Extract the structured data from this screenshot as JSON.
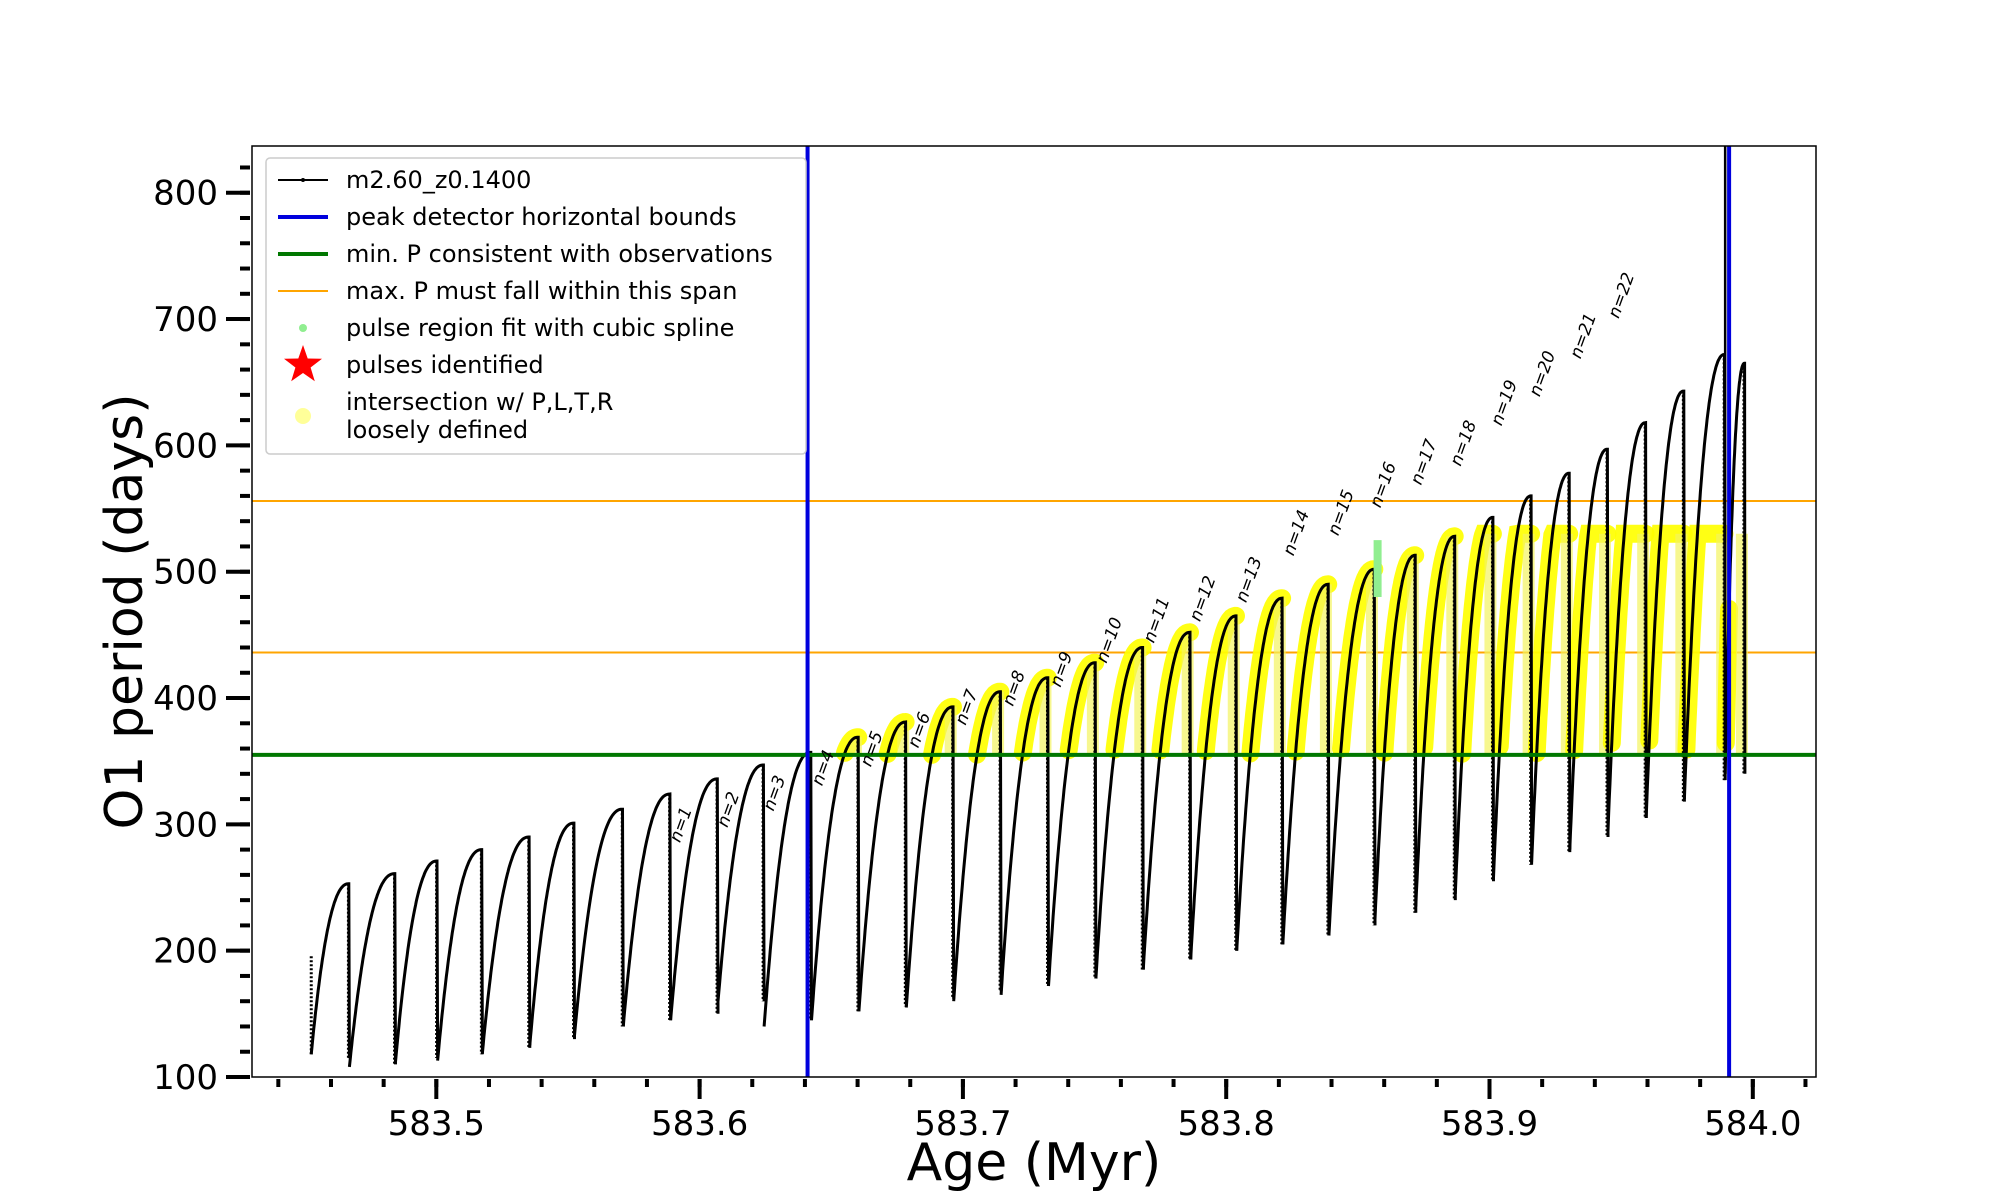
{
  "chart_data": {
    "type": "line",
    "title": "",
    "xlabel": "Age (Myr)",
    "ylabel": "O1 period (days)",
    "xlim": [
      583.43,
      584.024
    ],
    "ylim": [
      100,
      837
    ],
    "x_ticks": [
      583.5,
      583.6,
      583.7,
      583.8,
      583.9,
      584.0
    ],
    "x_tick_labels": [
      "583.5",
      "583.6",
      "583.7",
      "583.8",
      "583.9",
      "584.0"
    ],
    "y_ticks": [
      100,
      200,
      300,
      400,
      500,
      600,
      700,
      800
    ],
    "y_tick_labels": [
      "100",
      "200",
      "300",
      "400",
      "500",
      "600",
      "700",
      "800"
    ],
    "grid": false,
    "legend_position": "top-left",
    "legend": [
      {
        "label": "m2.60_z0.1400",
        "kind": "line-marker",
        "color": "#000000"
      },
      {
        "label": "peak detector horizontal bounds",
        "kind": "line",
        "color": "#0000dd"
      },
      {
        "label": "min. P consistent with observations",
        "kind": "line",
        "color": "#007700"
      },
      {
        "label": "max. P must fall within this span",
        "kind": "thin-line",
        "color": "#ffa500"
      },
      {
        "label": "pulse region fit with cubic spline",
        "kind": "dot",
        "color": "#90ee90"
      },
      {
        "label": "pulses identified",
        "kind": "star",
        "color": "#ff0000"
      },
      {
        "label": "intersection w/ P,L,T,R\nloosely defined",
        "kind": "big-dot",
        "color": "#ffff99"
      }
    ],
    "vertical_bounds": [
      583.641,
      583.991
    ],
    "min_period": 355,
    "max_period_span": [
      436,
      556
    ],
    "cycles": [
      {
        "start": 583.4525,
        "end": 583.467,
        "p_start": 118,
        "p_peak": 253,
        "p_min": 115
      },
      {
        "start": 583.467,
        "end": 583.4845,
        "p_start": 108,
        "p_peak": 261,
        "p_min": 110
      },
      {
        "start": 583.4845,
        "end": 583.5005,
        "p_start": 112,
        "p_peak": 271,
        "p_min": 115
      },
      {
        "start": 583.5005,
        "end": 583.5175,
        "p_start": 113,
        "p_peak": 280,
        "p_min": 118
      },
      {
        "start": 583.5175,
        "end": 583.5355,
        "p_start": 119,
        "p_peak": 290,
        "p_min": 123
      },
      {
        "start": 583.5355,
        "end": 583.5525,
        "p_start": 125,
        "p_peak": 301,
        "p_min": 130
      },
      {
        "start": 583.5525,
        "end": 583.571,
        "p_start": 133,
        "p_peak": 312,
        "p_min": 140
      },
      {
        "start": 583.571,
        "end": 583.589,
        "p_start": 140,
        "p_peak": 324,
        "p_min": 145
      },
      {
        "start": 583.589,
        "end": 583.607,
        "p_start": 145,
        "p_peak": 336,
        "p_min": 150
      },
      {
        "start": 583.607,
        "end": 583.6245,
        "p_start": 160,
        "p_peak": 347,
        "p_min": 160
      },
      {
        "start": 583.6245,
        "end": 583.6425,
        "p_start": 140,
        "p_peak": 357,
        "p_min": 145
      },
      {
        "start": 583.6425,
        "end": 583.6605,
        "p_start": 145,
        "p_peak": 369,
        "p_min": 152
      },
      {
        "start": 583.6605,
        "end": 583.6785,
        "p_start": 152,
        "p_peak": 381,
        "p_min": 156
      },
      {
        "start": 583.6785,
        "end": 583.6965,
        "p_start": 155,
        "p_peak": 393,
        "p_min": 162
      },
      {
        "start": 583.6965,
        "end": 583.7145,
        "p_start": 160,
        "p_peak": 405,
        "p_min": 168
      },
      {
        "start": 583.7145,
        "end": 583.7325,
        "p_start": 165,
        "p_peak": 416,
        "p_min": 172
      },
      {
        "start": 583.7325,
        "end": 583.7505,
        "p_start": 172,
        "p_peak": 428,
        "p_min": 178
      },
      {
        "start": 583.7505,
        "end": 583.7685,
        "p_start": 178,
        "p_peak": 440,
        "p_min": 185
      },
      {
        "start": 583.7685,
        "end": 583.7865,
        "p_start": 185,
        "p_peak": 452,
        "p_min": 193
      },
      {
        "start": 583.7865,
        "end": 583.804,
        "p_start": 193,
        "p_peak": 465,
        "p_min": 200
      },
      {
        "start": 583.804,
        "end": 583.8215,
        "p_start": 200,
        "p_peak": 479,
        "p_min": 205
      },
      {
        "start": 583.8215,
        "end": 583.839,
        "p_start": 205,
        "p_peak": 490,
        "p_min": 212
      },
      {
        "start": 583.839,
        "end": 583.8565,
        "p_start": 212,
        "p_peak": 502,
        "p_min": 220
      },
      {
        "start": 583.8565,
        "end": 583.872,
        "p_start": 225,
        "p_peak": 513,
        "p_min": 230
      },
      {
        "start": 583.872,
        "end": 583.887,
        "p_start": 235,
        "p_peak": 528,
        "p_min": 240
      },
      {
        "start": 583.887,
        "end": 583.9015,
        "p_start": 245,
        "p_peak": 543,
        "p_min": 255
      },
      {
        "start": 583.9015,
        "end": 583.916,
        "p_start": 258,
        "p_peak": 560,
        "p_min": 268
      },
      {
        "start": 583.916,
        "end": 583.9305,
        "p_start": 270,
        "p_peak": 578,
        "p_min": 278
      },
      {
        "start": 583.9305,
        "end": 583.945,
        "p_start": 280,
        "p_peak": 597,
        "p_min": 290
      },
      {
        "start": 583.945,
        "end": 583.9595,
        "p_start": 295,
        "p_peak": 618,
        "p_min": 305
      },
      {
        "start": 583.9595,
        "end": 583.974,
        "p_start": 305,
        "p_peak": 643,
        "p_min": 318
      },
      {
        "start": 583.974,
        "end": 583.9895,
        "p_start": 320,
        "p_peak": 672,
        "p_min": 335
      },
      {
        "start": 583.9895,
        "end": 583.997,
        "p_start": 340,
        "p_peak": 665,
        "p_min": 340
      }
    ],
    "pulse_labels": [
      {
        "label": "n=1",
        "x": 583.5925,
        "y": 285
      },
      {
        "label": "n=2",
        "x": 583.6105,
        "y": 297
      },
      {
        "label": "n=3",
        "x": 583.628,
        "y": 310
      },
      {
        "label": "n=4",
        "x": 583.6465,
        "y": 330
      },
      {
        "label": "n=5",
        "x": 583.665,
        "y": 345
      },
      {
        "label": "n=6",
        "x": 583.683,
        "y": 360
      },
      {
        "label": "n=7",
        "x": 583.701,
        "y": 378
      },
      {
        "label": "n=8",
        "x": 583.719,
        "y": 393
      },
      {
        "label": "n=9",
        "x": 583.737,
        "y": 408
      },
      {
        "label": "n=10",
        "x": 583.7545,
        "y": 427
      },
      {
        "label": "n=11",
        "x": 583.7725,
        "y": 443
      },
      {
        "label": "n=12",
        "x": 583.79,
        "y": 460
      },
      {
        "label": "n=13",
        "x": 583.8075,
        "y": 475
      },
      {
        "label": "n=14",
        "x": 583.8255,
        "y": 512
      },
      {
        "label": "n=15",
        "x": 583.8425,
        "y": 528
      },
      {
        "label": "n=16",
        "x": 583.8585,
        "y": 550
      },
      {
        "label": "n=17",
        "x": 583.874,
        "y": 568
      },
      {
        "label": "n=18",
        "x": 583.889,
        "y": 583
      },
      {
        "label": "n=19",
        "x": 583.9045,
        "y": 615
      },
      {
        "label": "n=20",
        "x": 583.919,
        "y": 638
      },
      {
        "label": "n=21",
        "x": 583.9345,
        "y": 668
      },
      {
        "label": "n=22",
        "x": 583.949,
        "y": 700
      }
    ],
    "spline_highlight": {
      "x": 583.8575,
      "y_range": [
        480,
        525
      ]
    },
    "spike": {
      "x": 583.9895,
      "y_range": [
        350,
        837
      ]
    }
  }
}
